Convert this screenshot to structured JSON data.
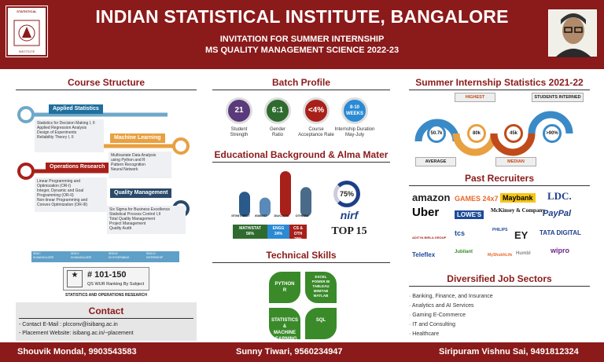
{
  "header": {
    "title": "INDIAN STATISTICAL INSTITUTE, BANGALORE",
    "line1": "INVITATION FOR SUMMER INTERNSHIP",
    "line2": "MS QUALITY MANAGEMENT SCIENCE 2022-23",
    "logo_top": "STATISTICAL",
    "logo_bottom": "INSTITUTE"
  },
  "course": {
    "title": "Course Structure",
    "modules": [
      {
        "name": "Applied Statistics",
        "items": "Statistics for Decision Making I, II\nApplied Regression Analysis\nDesign of Experiments\nReliability Theory I, II"
      },
      {
        "name": "Machine Learning",
        "items": "Multivariate Data Analysis\nusing Python and R\nPattern Recognition\nNeural Network"
      },
      {
        "name": "Operations Research",
        "items": "Linear Programming and\nOptimization (OR-I)\nInteger, Dynamic and Goal\nProgramming (OR-II)\nNon-linear Programming and\nConvex Optimization (OR-III)"
      },
      {
        "name": "Quality Management",
        "items": "Six Sigma for Business Excellence\nStatistical Process Control I,II\nTotal Quality Management\nProject Management\nQuality Audit"
      }
    ],
    "sems": [
      "SEM I\nIN BANGALORE",
      "SEM II\nIN BANGALORE",
      "SEM III\nIN HYDERABAD",
      "SEM IV\nINTERNSHIP"
    ],
    "qs_rank": "# 101-150",
    "qs_label": "QS WUR Ranking By Subject",
    "qs_caption": "STATISTICS AND OPERATIONS RESEARCH"
  },
  "contact": {
    "title": "Contact",
    "email": "- Contact E-Mail : plcconv@isibang.ac.in",
    "website": "- Placement Website: isibang.ac.in/~placement"
  },
  "batch": {
    "title": "Batch Profile",
    "stats": [
      {
        "value": "21",
        "label": "Student\nStrength",
        "color": "#5a3a7a"
      },
      {
        "value": "6:1",
        "label": "Gender\nRatio",
        "color": "#2f6b2f"
      },
      {
        "value": "<4%",
        "label": "Course\nAcceptance Rate",
        "color": "#a8201a"
      },
      {
        "value": "8-10\nWEEKS",
        "label": "Internship Duration\nMay-July",
        "color": "#2a8ad4"
      }
    ]
  },
  "education": {
    "title": "Educational Background & Alma Mater",
    "bars": [
      {
        "label": "IIT/NIT/IIEST",
        "value": 0.55
      },
      {
        "label": "ISI/IIEST",
        "value": 0.42
      },
      {
        "label": "DU/CU/JU",
        "value": 1.0
      },
      {
        "label": "OTHERS",
        "value": 0.65
      }
    ],
    "streams": [
      {
        "label": "MATH/STAT\n56%",
        "color": "#2f6b2f"
      },
      {
        "label": "ENGG\n24%",
        "color": "#2a8ad4"
      },
      {
        "label": "CS & OTH\n20%",
        "color": "#a8201a"
      }
    ],
    "nirf_pct": "75%",
    "nirf_label": "nirf",
    "top": "TOP 15"
  },
  "skills": {
    "title": "Technical Skills",
    "tiles": [
      "PYTHON\nR",
      "EXCEL\nPOWER BI\nTABLEAU\nMINITAB\nMATLAB",
      "STATISTICS &\nMACHINE\nLEARNING",
      "SQL"
    ]
  },
  "internship": {
    "title": "Summer Internship Statistics 2021-22",
    "highest": "HIGHEST",
    "interned": "STUDENTS INTERNED",
    "average": "AVERAGE",
    "median": "MEDIAN",
    "values": [
      "50.7k",
      "80k",
      "45k",
      ">90%"
    ]
  },
  "recruiters": {
    "title": "Past Recruiters",
    "names": [
      "amazon",
      "GAMES 24x7",
      "Maybank",
      "LDC.",
      "Uber",
      "LOWE'S",
      "McKinsey & Company",
      "PayPal",
      "ADITYA BIRLA GROUP",
      "tcs",
      "PHILIPS",
      "EY",
      "TATA DIGITAL",
      "Teleflex",
      "Jubilant",
      "MyShubhLife",
      "Humbl",
      "wipro"
    ]
  },
  "sectors": {
    "title": "Diversified Job Sectors",
    "items": [
      "· Banking, Finance, and Insurance",
      "· Analytics and AI Services",
      "· Gaming  E-Commerce",
      "· IT and Consulting",
      "· Healthcare"
    ]
  },
  "footer": {
    "p1": "Shouvik Mondal, 9903543583",
    "p2": "Sunny Tiwari, 9560234947",
    "p3": "Siripuram Vishnu Sai, 9491812324"
  }
}
